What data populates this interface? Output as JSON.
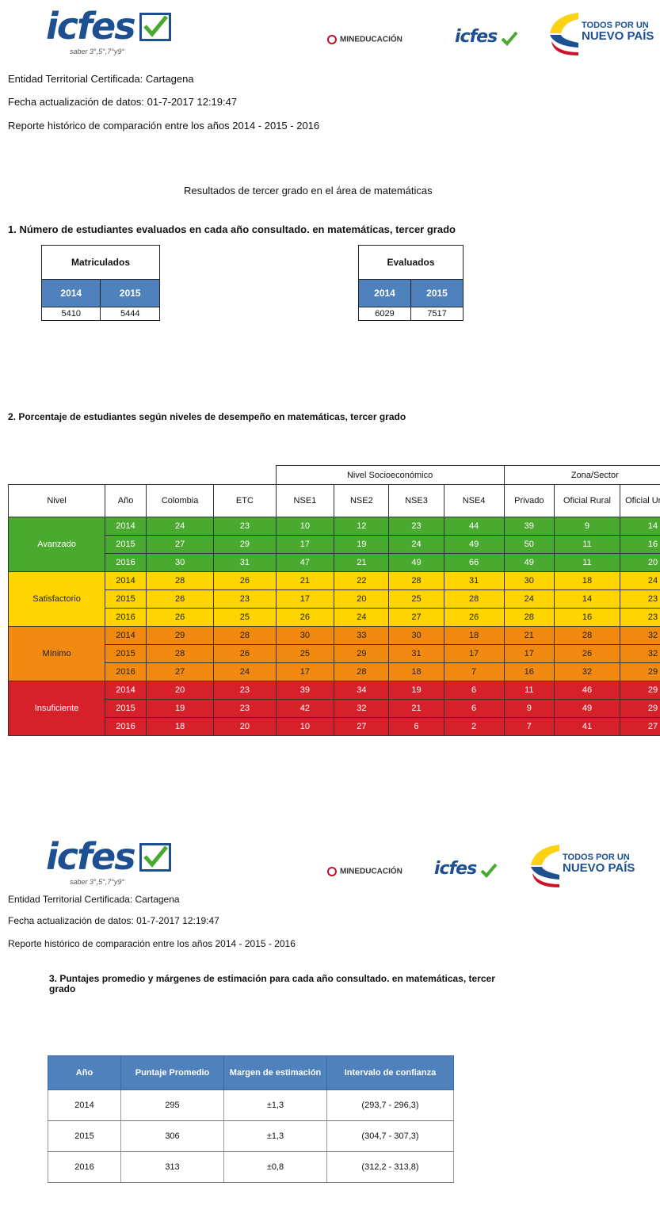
{
  "header": {
    "icfes_logo": "icfes",
    "icfes_tagline": "saber 3°,5°,7°y9°",
    "mineducacion": "MINEDUCACIÓN",
    "icfes_small": "icfes",
    "todos_line1": "TODOS POR UN",
    "todos_line2": "NUEVO PAÍS"
  },
  "meta": {
    "entity": "Entidad Territorial Certificada: Cartagena",
    "updated": "Fecha actualización de datos: 01-7-2017 12:19:47",
    "report": "Reporte histórico de comparación entre los años  2014 - 2015 - 2016"
  },
  "section_title": "Resultados de tercer grado en el área de matemáticas",
  "q1": {
    "title": "1. Número de estudiantes evaluados en cada año consultado. en matemáticas, tercer grado",
    "matriculados": {
      "label": "Matriculados",
      "years": [
        "2014",
        "2015"
      ],
      "values": [
        "5410",
        "5444"
      ]
    },
    "evaluados": {
      "label": "Evaluados",
      "years": [
        "2014",
        "2015"
      ],
      "values": [
        "6029",
        "7517"
      ]
    }
  },
  "q2": {
    "title": "2. Porcentaje de estudiantes según niveles de desempeño en  matemáticas, tercer grado",
    "group_nse": "Nivel Socioeconómico",
    "group_zona": "Zona/Sector",
    "headers": [
      "Nivel",
      "Año",
      "Colombia",
      "ETC",
      "NSE1",
      "NSE2",
      "NSE3",
      "NSE4",
      "Privado",
      "Oficial Rural",
      "Oficial Urbano"
    ],
    "levels": [
      {
        "name": "Avanzado",
        "rows": [
          [
            "2014",
            "24",
            "23",
            "10",
            "12",
            "23",
            "44",
            "39",
            "9",
            "14"
          ],
          [
            "2015",
            "27",
            "29",
            "17",
            "19",
            "24",
            "49",
            "50",
            "11",
            "16"
          ],
          [
            "2016",
            "30",
            "31",
            "47",
            "21",
            "49",
            "66",
            "49",
            "11",
            "20"
          ]
        ]
      },
      {
        "name": "Satisfactorio",
        "rows": [
          [
            "2014",
            "28",
            "26",
            "21",
            "22",
            "28",
            "31",
            "30",
            "18",
            "24"
          ],
          [
            "2015",
            "26",
            "23",
            "17",
            "20",
            "25",
            "28",
            "24",
            "14",
            "23"
          ],
          [
            "2016",
            "26",
            "25",
            "26",
            "24",
            "27",
            "26",
            "28",
            "16",
            "23"
          ]
        ]
      },
      {
        "name": "Mínimo",
        "rows": [
          [
            "2014",
            "29",
            "28",
            "30",
            "33",
            "30",
            "18",
            "21",
            "28",
            "32"
          ],
          [
            "2015",
            "28",
            "26",
            "25",
            "29",
            "31",
            "17",
            "17",
            "26",
            "32"
          ],
          [
            "2016",
            "27",
            "24",
            "17",
            "28",
            "18",
            "7",
            "16",
            "32",
            "29"
          ]
        ]
      },
      {
        "name": "Insuficiente",
        "rows": [
          [
            "2014",
            "20",
            "23",
            "39",
            "34",
            "19",
            "6",
            "11",
            "46",
            "29"
          ],
          [
            "2015",
            "19",
            "23",
            "42",
            "32",
            "21",
            "6",
            "9",
            "49",
            "29"
          ],
          [
            "2016",
            "18",
            "20",
            "10",
            "27",
            "6",
            "2",
            "7",
            "41",
            "27"
          ]
        ]
      }
    ]
  },
  "q3": {
    "title_line1": "3. Puntajes promedio y márgenes de estimación para cada año consultado. en matemáticas, tercer",
    "title_line2": "grado",
    "headers": [
      "Año",
      "Puntaje Promedio",
      "Margen de estimación",
      "Intervalo de confianza"
    ],
    "rows": [
      [
        "2014",
        "295",
        "±1,3",
        "(293,7 - 296,3)"
      ],
      [
        "2015",
        "306",
        "±1,3",
        "(304,7 - 307,3)"
      ],
      [
        "2016",
        "313",
        "±0,8",
        "(312,2 - 313,8)"
      ]
    ]
  }
}
